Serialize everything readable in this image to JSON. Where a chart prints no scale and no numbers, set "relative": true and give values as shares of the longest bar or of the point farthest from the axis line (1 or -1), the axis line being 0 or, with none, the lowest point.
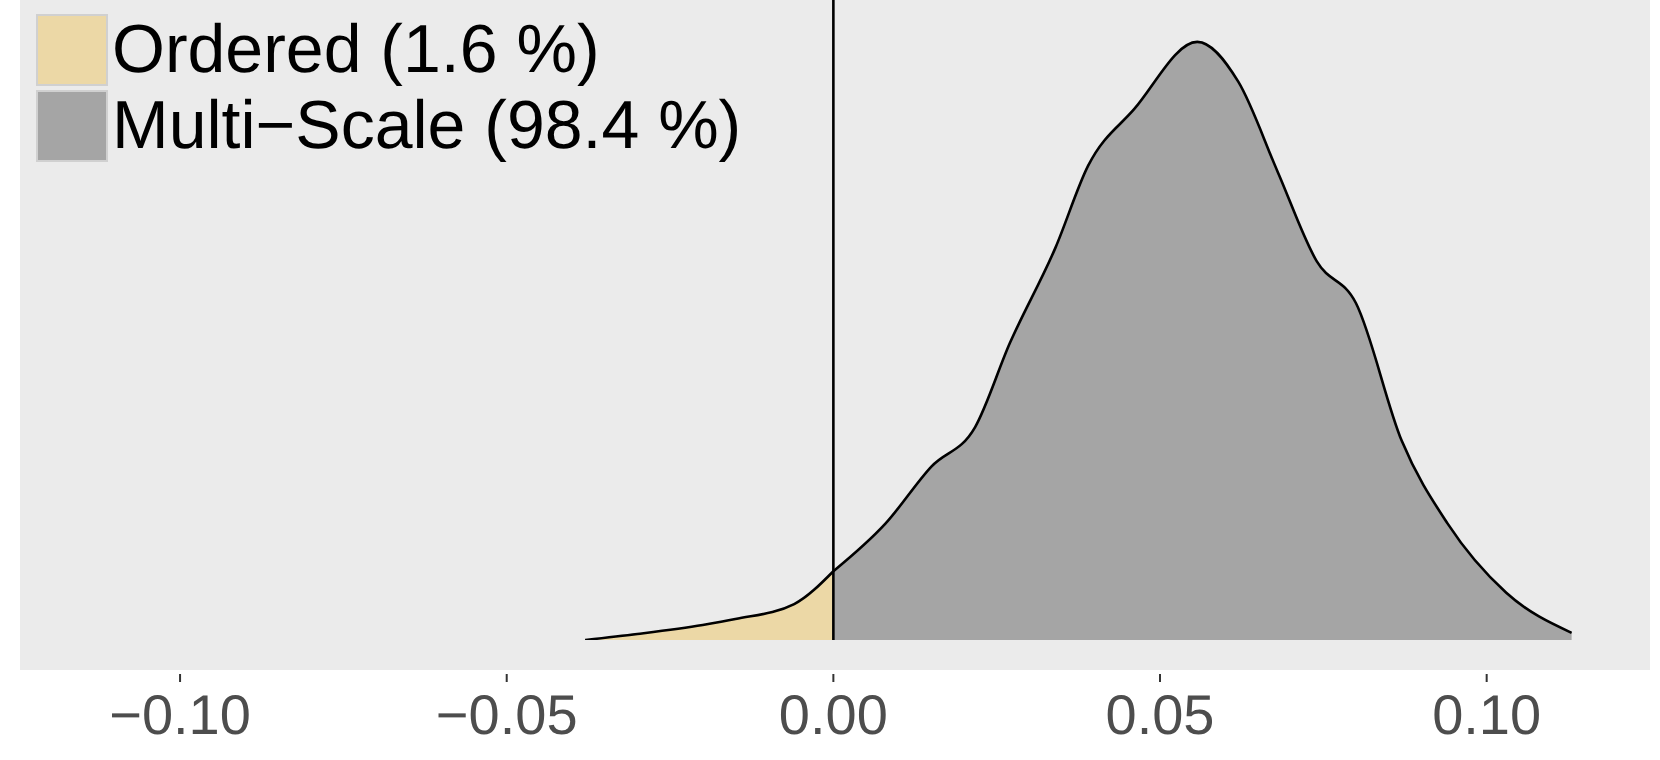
{
  "chart_data": {
    "type": "area",
    "relative": true,
    "legend": "top left",
    "grid": false,
    "xlim": [
      -0.1245,
      0.125
    ],
    "xticks": [
      {
        "value": -0.1,
        "label": "−0.10"
      },
      {
        "value": -0.05,
        "label": "−0.05"
      },
      {
        "value": 0,
        "label": "0.00"
      },
      {
        "value": 0.05,
        "label": "0.05"
      },
      {
        "value": 0.1,
        "label": "0.10"
      }
    ],
    "ref_lines": [
      {
        "axis": "x",
        "value": 0,
        "color": "#000000"
      }
    ],
    "series": [
      {
        "name": "Ordered (1.6 %)",
        "color": "#ecd8a6",
        "x": [
          -0.038,
          -0.03,
          -0.02,
          -0.015,
          -0.006,
          0
        ],
        "values": [
          0,
          0.01,
          0.025,
          0.035,
          0.06,
          0.115
        ]
      },
      {
        "name": "Multi−Scale (98.4 %)",
        "color": "#a5a5a5",
        "x": [
          0,
          0.008,
          0.015,
          0.0217,
          0.027,
          0.034,
          0.039,
          0.046,
          0.0557,
          0.062,
          0.068,
          0.074,
          0.08,
          0.087,
          0.094,
          0.103,
          0.113
        ],
        "values": [
          0.115,
          0.195,
          0.29,
          0.356,
          0.496,
          0.656,
          0.793,
          0.887,
          1,
          0.933,
          0.783,
          0.633,
          0.563,
          0.333,
          0.195,
          0.079,
          0.012
        ]
      }
    ]
  }
}
